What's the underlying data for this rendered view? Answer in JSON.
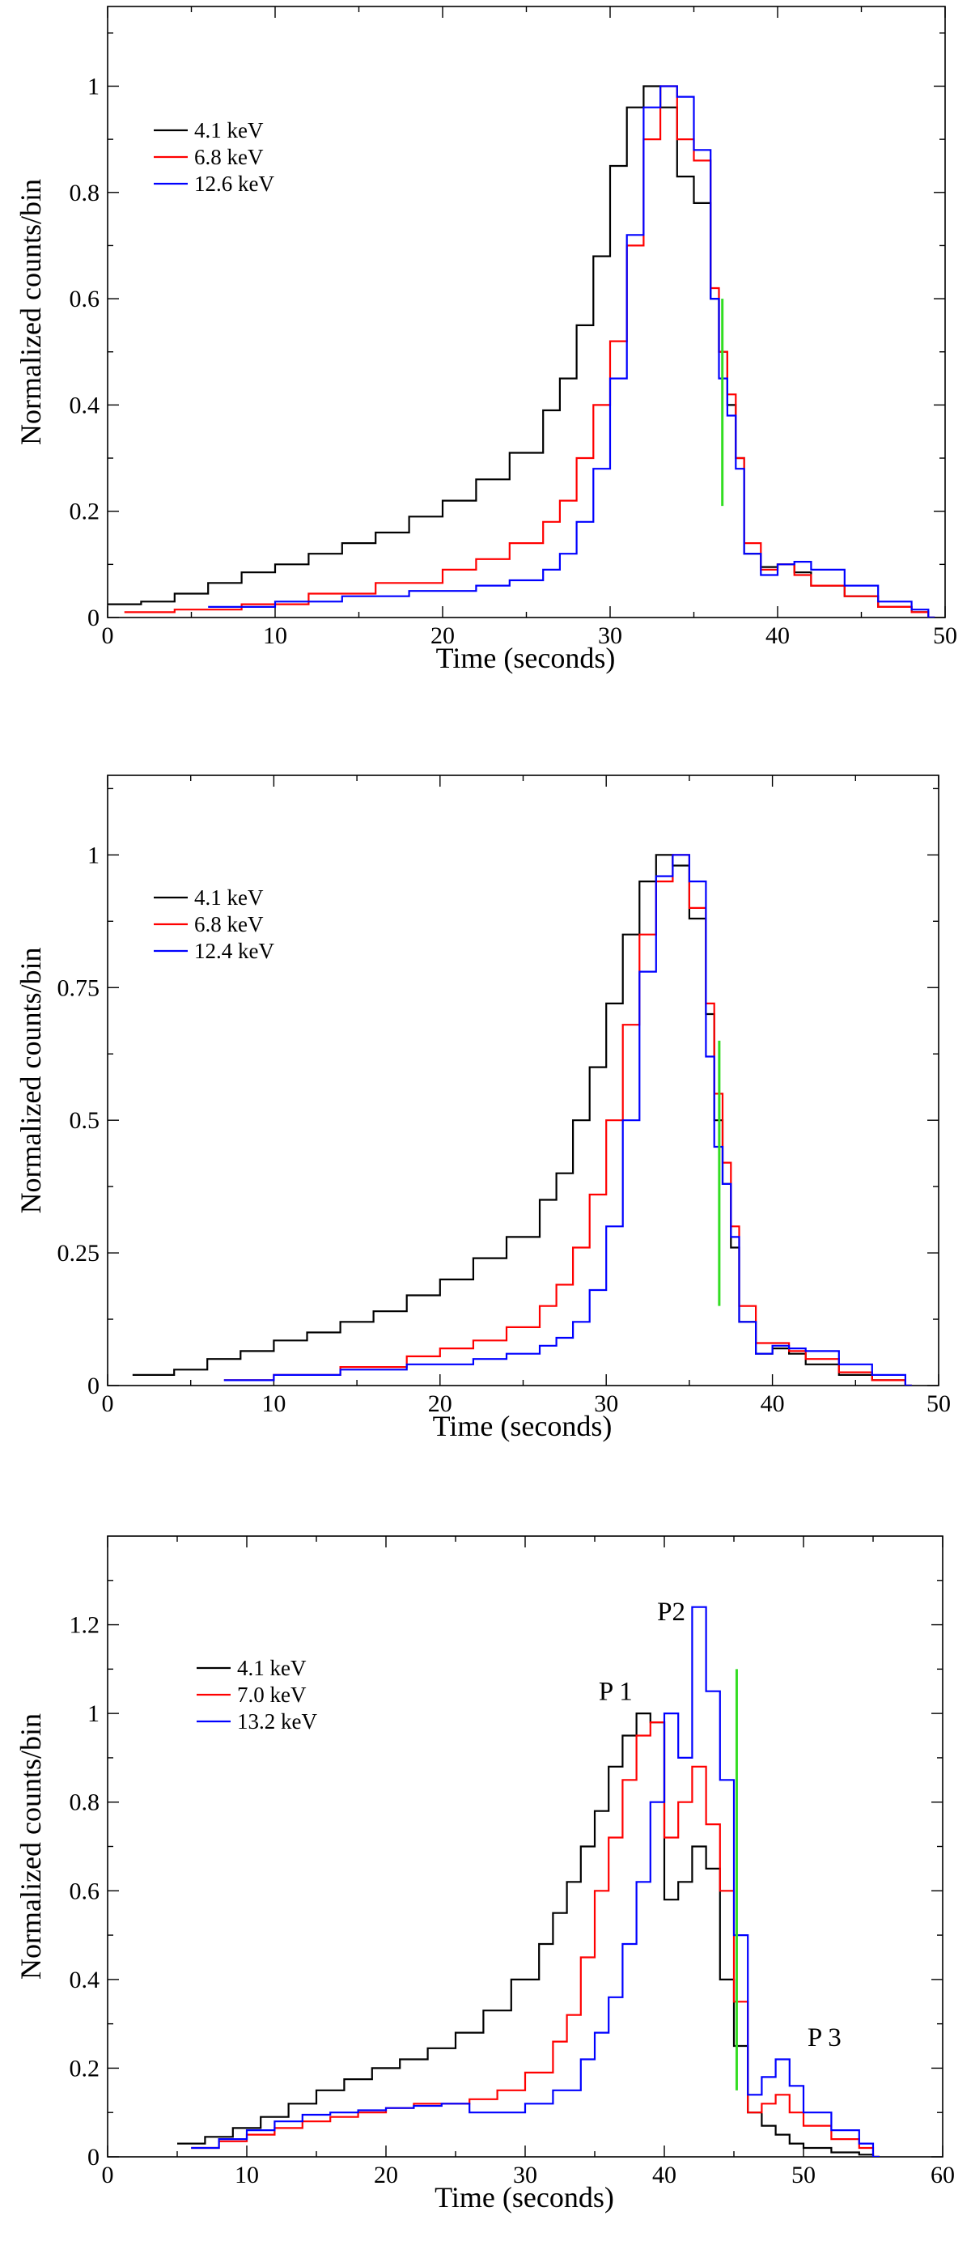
{
  "chart_data": [
    {
      "type": "line",
      "title": "",
      "xlabel": "Time  (seconds)",
      "ylabel": "Normalized counts/bin",
      "xlim": [
        0,
        50
      ],
      "ylim": [
        0,
        1.15
      ],
      "xticks": [
        0,
        10,
        20,
        30,
        40,
        50
      ],
      "xtick_labels": [
        "0",
        "10",
        "20",
        "30",
        "40",
        "50"
      ],
      "yticks": [
        0,
        0.2,
        0.4,
        0.6,
        0.8,
        1
      ],
      "ytick_labels": [
        "0",
        "0.2",
        "0.4",
        "0.6",
        "0.8",
        "1"
      ],
      "legend": [
        "4.1  keV",
        "6.8  keV",
        "12.6  keV"
      ],
      "legend_position": "top-left",
      "vline": {
        "x": 36.7,
        "y0": 0.21,
        "y1": 0.6,
        "color": "#33dd22"
      },
      "series": [
        {
          "name": "4.1  keV",
          "color": "#000000",
          "x": [
            0,
            2,
            4,
            6,
            8,
            10,
            12,
            14,
            16,
            18,
            20,
            22,
            24,
            26,
            27,
            28,
            29,
            30,
            31,
            32,
            33,
            34,
            35,
            36,
            36.5,
            37,
            37.5,
            38,
            39,
            40,
            41,
            42,
            44,
            46,
            48,
            49
          ],
          "y": [
            0.025,
            0.03,
            0.045,
            0.065,
            0.085,
            0.1,
            0.12,
            0.14,
            0.16,
            0.19,
            0.22,
            0.26,
            0.31,
            0.39,
            0.45,
            0.55,
            0.68,
            0.85,
            0.96,
            1.0,
            0.96,
            0.83,
            0.78,
            0.6,
            0.5,
            0.4,
            0.3,
            0.12,
            0.095,
            0.1,
            0.085,
            0.06,
            0.04,
            0.02,
            0.01,
            0
          ]
        },
        {
          "name": "6.8  keV",
          "color": "#ff0000",
          "x": [
            1,
            4,
            8,
            12,
            16,
            20,
            22,
            24,
            26,
            27,
            28,
            29,
            30,
            31,
            32,
            33,
            34,
            35,
            36,
            36.5,
            37,
            37.5,
            38,
            39,
            40,
            41,
            42,
            44,
            46,
            48,
            49
          ],
          "y": [
            0.01,
            0.015,
            0.025,
            0.045,
            0.065,
            0.09,
            0.11,
            0.14,
            0.18,
            0.22,
            0.3,
            0.4,
            0.52,
            0.7,
            0.9,
            1.0,
            0.9,
            0.86,
            0.62,
            0.5,
            0.42,
            0.3,
            0.14,
            0.09,
            0.1,
            0.08,
            0.06,
            0.04,
            0.02,
            0.01,
            0
          ]
        },
        {
          "name": "12.6  keV",
          "color": "#0000ff",
          "x": [
            6,
            10,
            14,
            18,
            22,
            24,
            26,
            27,
            28,
            29,
            30,
            31,
            32,
            33,
            34,
            35,
            36,
            36.5,
            37,
            37.5,
            38,
            39,
            40,
            41,
            42,
            44,
            46,
            48,
            49
          ],
          "y": [
            0.02,
            0.03,
            0.04,
            0.05,
            0.06,
            0.07,
            0.09,
            0.12,
            0.18,
            0.28,
            0.45,
            0.72,
            0.96,
            1.0,
            0.98,
            0.88,
            0.6,
            0.45,
            0.38,
            0.28,
            0.12,
            0.08,
            0.1,
            0.105,
            0.09,
            0.06,
            0.03,
            0.015,
            0
          ]
        }
      ]
    },
    {
      "type": "line",
      "title": "",
      "xlabel": "Time  (seconds)",
      "ylabel": "Normalized counts/bin",
      "xlim": [
        0,
        50
      ],
      "ylim": [
        0,
        1.15
      ],
      "xticks": [
        0,
        10,
        20,
        30,
        40,
        50
      ],
      "xtick_labels": [
        "0",
        "10",
        "20",
        "30",
        "40",
        "50"
      ],
      "yticks": [
        0,
        0.25,
        0.5,
        0.75,
        1
      ],
      "ytick_labels": [
        "0",
        "0.25",
        "0.5",
        "0.75",
        "1"
      ],
      "legend": [
        "4.1  keV",
        "6.8  keV",
        "12.4  keV"
      ],
      "legend_position": "top-left",
      "vline": {
        "x": 36.8,
        "y0": 0.15,
        "y1": 0.65,
        "color": "#33dd22"
      },
      "series": [
        {
          "name": "4.1  keV",
          "color": "#000000",
          "x": [
            1.5,
            4,
            6,
            8,
            10,
            12,
            14,
            16,
            18,
            20,
            22,
            24,
            26,
            27,
            28,
            29,
            30,
            31,
            32,
            33,
            34,
            35,
            36,
            36.5,
            37,
            37.5,
            38,
            39,
            40,
            41,
            42,
            44,
            46,
            48
          ],
          "y": [
            0.02,
            0.03,
            0.05,
            0.065,
            0.085,
            0.1,
            0.12,
            0.14,
            0.17,
            0.2,
            0.24,
            0.28,
            0.35,
            0.4,
            0.5,
            0.6,
            0.72,
            0.85,
            0.95,
            1.0,
            0.98,
            0.88,
            0.7,
            0.5,
            0.38,
            0.26,
            0.12,
            0.06,
            0.07,
            0.06,
            0.04,
            0.02,
            0.01,
            0
          ]
        },
        {
          "name": "6.8  keV",
          "color": "#ff0000",
          "x": [
            7,
            10,
            14,
            18,
            20,
            22,
            24,
            26,
            27,
            28,
            29,
            30,
            31,
            32,
            33,
            34,
            35,
            36,
            36.5,
            37,
            37.5,
            38,
            39,
            40,
            41,
            42,
            44,
            46,
            48
          ],
          "y": [
            0.01,
            0.02,
            0.035,
            0.055,
            0.07,
            0.085,
            0.11,
            0.15,
            0.19,
            0.26,
            0.36,
            0.5,
            0.68,
            0.85,
            0.95,
            1.0,
            0.9,
            0.72,
            0.55,
            0.42,
            0.3,
            0.15,
            0.08,
            0.08,
            0.065,
            0.05,
            0.025,
            0.01,
            0
          ]
        },
        {
          "name": "12.4  keV",
          "color": "#0000ff",
          "x": [
            7,
            10,
            14,
            18,
            22,
            24,
            26,
            27,
            28,
            29,
            30,
            31,
            32,
            33,
            34,
            35,
            36,
            36.5,
            37,
            37.5,
            38,
            39,
            40,
            41,
            42,
            44,
            46,
            48
          ],
          "y": [
            0.01,
            0.02,
            0.03,
            0.04,
            0.05,
            0.06,
            0.075,
            0.09,
            0.12,
            0.18,
            0.3,
            0.5,
            0.78,
            0.96,
            1.0,
            0.95,
            0.62,
            0.45,
            0.38,
            0.28,
            0.12,
            0.06,
            0.075,
            0.07,
            0.065,
            0.04,
            0.02,
            0
          ]
        }
      ]
    },
    {
      "type": "line",
      "title": "",
      "xlabel": "Time (seconds)",
      "ylabel": "Normalized counts/bin",
      "xlim": [
        0,
        60
      ],
      "ylim": [
        0,
        1.4
      ],
      "xticks": [
        0,
        10,
        20,
        30,
        40,
        50,
        60
      ],
      "xtick_labels": [
        "0",
        "10",
        "20",
        "30",
        "40",
        "50",
        "60"
      ],
      "yticks": [
        0,
        0.2,
        0.4,
        0.6,
        0.8,
        1,
        1.2
      ],
      "ytick_labels": [
        "0",
        "0.2",
        "0.4",
        "0.6",
        "0.8",
        "1",
        "1.2"
      ],
      "legend": [
        "4.1  keV",
        "7.0  keV",
        "13.2  keV"
      ],
      "legend_position": "top-left",
      "annotations": [
        {
          "text": "P 1",
          "x": 36.5,
          "y": 1.03
        },
        {
          "text": "P2",
          "x": 40.5,
          "y": 1.21
        },
        {
          "text": "P 3",
          "x": 51.5,
          "y": 0.25
        }
      ],
      "vline": {
        "x": 45.2,
        "y0": 0.15,
        "y1": 1.1,
        "color": "#33dd22"
      },
      "series": [
        {
          "name": "4.1  keV",
          "color": "#000000",
          "x": [
            5,
            7,
            9,
            11,
            13,
            15,
            17,
            19,
            21,
            23,
            25,
            27,
            29,
            31,
            32,
            33,
            34,
            35,
            36,
            37,
            38,
            39,
            40,
            41,
            42,
            43,
            44,
            45,
            46,
            47,
            48,
            49,
            50,
            52,
            54,
            55
          ],
          "y": [
            0.03,
            0.045,
            0.065,
            0.09,
            0.12,
            0.15,
            0.175,
            0.2,
            0.22,
            0.245,
            0.28,
            0.33,
            0.4,
            0.48,
            0.55,
            0.62,
            0.7,
            0.78,
            0.88,
            0.95,
            1.0,
            0.98,
            0.58,
            0.62,
            0.7,
            0.65,
            0.4,
            0.25,
            0.1,
            0.07,
            0.05,
            0.03,
            0.02,
            0.01,
            0.005,
            0
          ]
        },
        {
          "name": "7.0  keV",
          "color": "#ff0000",
          "x": [
            6,
            8,
            10,
            12,
            14,
            16,
            18,
            20,
            22,
            24,
            26,
            28,
            30,
            32,
            33,
            34,
            35,
            36,
            37,
            38,
            39,
            40,
            41,
            42,
            43,
            44,
            45,
            46,
            47,
            48,
            49,
            50,
            52,
            54,
            55
          ],
          "y": [
            0.02,
            0.035,
            0.05,
            0.065,
            0.08,
            0.09,
            0.1,
            0.11,
            0.12,
            0.12,
            0.13,
            0.15,
            0.19,
            0.26,
            0.32,
            0.45,
            0.6,
            0.72,
            0.85,
            0.95,
            0.98,
            0.72,
            0.8,
            0.88,
            0.75,
            0.6,
            0.35,
            0.1,
            0.12,
            0.14,
            0.1,
            0.07,
            0.04,
            0.02,
            0
          ]
        },
        {
          "name": "13.2  keV",
          "color": "#0000ff",
          "x": [
            6,
            8,
            10,
            12,
            14,
            16,
            18,
            20,
            22,
            24,
            26,
            28,
            30,
            32,
            34,
            35,
            36,
            37,
            38,
            39,
            40,
            41,
            42,
            43,
            44,
            45,
            46,
            47,
            48,
            49,
            50,
            52,
            54,
            55
          ],
          "y": [
            0.02,
            0.04,
            0.06,
            0.08,
            0.095,
            0.1,
            0.105,
            0.11,
            0.115,
            0.12,
            0.1,
            0.1,
            0.12,
            0.15,
            0.22,
            0.28,
            0.36,
            0.48,
            0.62,
            0.8,
            1.0,
            0.9,
            1.24,
            1.05,
            0.85,
            0.5,
            0.14,
            0.18,
            0.22,
            0.16,
            0.1,
            0.06,
            0.03,
            0
          ]
        }
      ]
    }
  ]
}
